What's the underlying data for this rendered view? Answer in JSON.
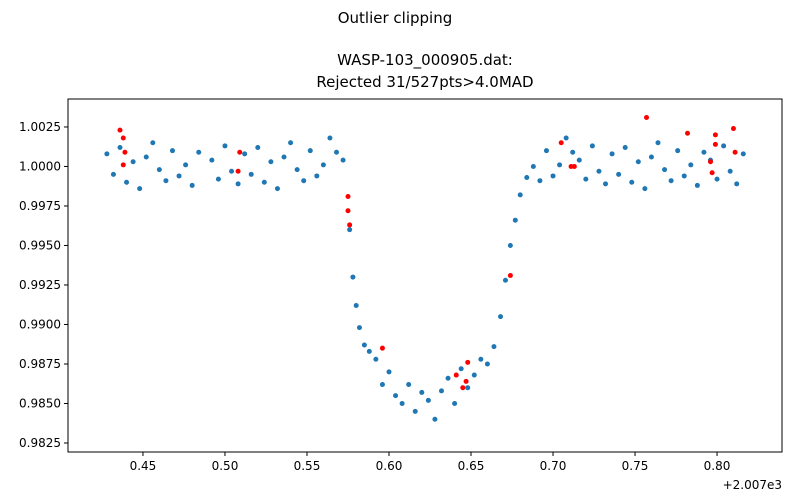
{
  "chart_data": {
    "type": "scatter",
    "title": "Outlier clipping",
    "subtitle": [
      "WASP-103_000905.dat:",
      "Rejected 31/527pts>4.0MAD"
    ],
    "x_offset_label": "+2.007e3",
    "xlim": [
      0.4043,
      0.8396
    ],
    "ylim": [
      0.98193,
      1.00427
    ],
    "xticks": [
      0.45,
      {
        "value": 0.5,
        "label": "0.50"
      },
      0.55,
      {
        "value": 0.6,
        "label": "0.60"
      },
      0.65,
      {
        "value": 0.7,
        "label": "0.70"
      },
      0.75,
      {
        "value": 0.8,
        "label": "0.80"
      }
    ],
    "yticks": [
      0.9825,
      {
        "value": 0.985,
        "label": "0.9850"
      },
      0.9875,
      {
        "value": 0.99,
        "label": "0.9900"
      },
      0.9925,
      {
        "value": 0.995,
        "label": "0.9950"
      },
      0.9975,
      {
        "value": 1,
        "label": "1.0000"
      },
      1.0025
    ],
    "series": [
      {
        "color": "#1f77b4",
        "x": [
          0.428,
          0.432,
          0.436,
          0.44,
          0.444,
          0.448,
          0.452,
          0.456,
          0.46,
          0.464,
          0.468,
          0.472,
          0.476,
          0.48,
          0.484,
          0.492,
          0.496,
          0.5,
          0.504,
          0.508,
          0.512,
          0.516,
          0.52,
          0.524,
          0.528,
          0.532,
          0.536,
          0.54,
          0.544,
          0.548,
          0.552,
          0.556,
          0.56,
          0.564,
          0.568,
          0.572,
          0.576,
          0.578,
          0.58,
          0.582,
          0.585,
          0.588,
          0.592,
          0.596,
          0.6,
          0.604,
          0.608,
          0.612,
          0.616,
          0.62,
          0.624,
          0.628,
          0.632,
          0.636,
          0.64,
          0.644,
          0.648,
          0.652,
          0.656,
          0.66,
          0.664,
          0.668,
          0.671,
          0.674,
          0.677,
          0.68,
          0.684,
          0.688,
          0.692,
          0.696,
          0.7,
          0.704,
          0.708,
          0.712,
          0.716,
          0.72,
          0.724,
          0.728,
          0.732,
          0.736,
          0.74,
          0.744,
          0.748,
          0.752,
          0.756,
          0.76,
          0.764,
          0.768,
          0.772,
          0.776,
          0.78,
          0.784,
          0.788,
          0.792,
          0.796,
          0.8,
          0.804,
          0.808,
          0.812,
          0.816
        ],
        "values": [
          1.0008,
          0.9995,
          1.0012,
          0.999,
          1.0003,
          0.9986,
          1.0006,
          1.0015,
          0.9998,
          0.9991,
          1.001,
          0.9994,
          1.0001,
          0.9988,
          1.0009,
          1.0004,
          0.9992,
          1.0013,
          0.9997,
          0.9989,
          1.0008,
          0.9995,
          1.0012,
          0.999,
          1.0003,
          0.9986,
          1.0006,
          1.0015,
          0.9998,
          0.9991,
          1.001,
          0.9994,
          1.0001,
          1.0018,
          1.0009,
          1.0004,
          0.996,
          0.993,
          0.9912,
          0.9898,
          0.9887,
          0.9883,
          0.9878,
          0.9862,
          0.987,
          0.9855,
          0.985,
          0.9862,
          0.9845,
          0.9857,
          0.9852,
          0.984,
          0.9858,
          0.9866,
          0.985,
          0.9872,
          0.986,
          0.9868,
          0.9878,
          0.9875,
          0.9886,
          0.9905,
          0.9928,
          0.995,
          0.9966,
          0.9982,
          0.9993,
          1.0,
          0.9991,
          1.001,
          0.9994,
          1.0001,
          1.0018,
          1.0009,
          1.0004,
          0.9992,
          1.0013,
          0.9997,
          0.9989,
          1.0008,
          0.9995,
          1.0012,
          0.999,
          1.0003,
          0.9986,
          1.0006,
          1.0015,
          0.9998,
          0.9991,
          1.001,
          0.9994,
          1.0001,
          0.9988,
          1.0009,
          1.0004,
          0.9992,
          1.0013,
          0.9997,
          0.9989,
          1.0008
        ]
      },
      {
        "color": "#ff0000",
        "x": [
          0.436,
          0.438,
          0.439,
          0.438,
          0.509,
          0.508,
          0.575,
          0.575,
          0.576,
          0.596,
          0.641,
          0.645,
          0.647,
          0.648,
          0.674,
          0.705,
          0.711,
          0.713,
          0.757,
          0.782,
          0.796,
          0.797,
          0.799,
          0.799,
          0.81,
          0.811
        ],
        "values": [
          1.0023,
          1.0018,
          1.0009,
          1.0001,
          1.0009,
          0.9997,
          0.9981,
          0.9972,
          0.9963,
          0.9885,
          0.9868,
          0.986,
          0.9864,
          0.9876,
          0.9931,
          1.0015,
          1.0,
          1.0,
          1.0031,
          1.0021,
          1.0003,
          0.9996,
          1.002,
          1.0014,
          1.0024,
          1.0009
        ]
      }
    ]
  }
}
